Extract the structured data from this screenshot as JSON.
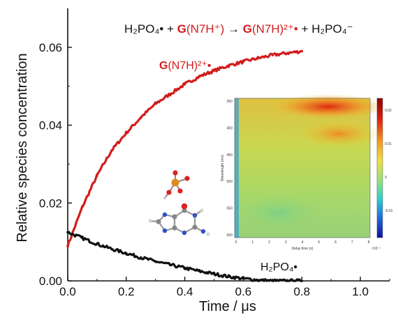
{
  "chart_data": {
    "type": "line",
    "xlabel": "Time / μs",
    "ylabel": "Relative species concentration",
    "xlim": [
      0.0,
      1.1
    ],
    "ylim": [
      0.0,
      0.07
    ],
    "xticks": [
      "0.0",
      "0.2",
      "0.4",
      "0.6",
      "0.8",
      "1.0"
    ],
    "yticks": [
      "0.00",
      "0.02",
      "0.04",
      "0.06"
    ],
    "grid": false,
    "annotation": {
      "reactant1": "H₂PO₄•",
      "plus1": " + ",
      "reactant2_bold": "G",
      "reactant2_rest": "(N7H⁺)",
      "arrow": " → ",
      "product1_bold": "G",
      "product1_rest": "(N7H)²⁺•",
      "plus2": " + ",
      "product2": "H₂PO₄⁻"
    },
    "series": [
      {
        "label_bold": "G",
        "label_rest": "(N7H)²⁺•",
        "color": "#d21d1d",
        "x": [
          0.0,
          0.05,
          0.1,
          0.15,
          0.2,
          0.25,
          0.3,
          0.35,
          0.4,
          0.45,
          0.5,
          0.55,
          0.6,
          0.65,
          0.7,
          0.75,
          0.8
        ],
        "y": [
          0.009,
          0.019,
          0.027,
          0.0335,
          0.038,
          0.042,
          0.0455,
          0.048,
          0.0505,
          0.0525,
          0.054,
          0.0553,
          0.0563,
          0.0572,
          0.058,
          0.0585,
          0.059
        ]
      },
      {
        "label": "H₂PO₄•",
        "color": "#111111",
        "x": [
          0.0,
          0.05,
          0.1,
          0.15,
          0.2,
          0.25,
          0.3,
          0.35,
          0.4,
          0.45,
          0.5,
          0.55,
          0.6,
          0.65,
          0.7,
          0.75,
          0.8
        ],
        "y": [
          0.0125,
          0.011,
          0.0095,
          0.0082,
          0.0071,
          0.006,
          0.005,
          0.0041,
          0.0033,
          0.0025,
          0.0018,
          0.0011,
          0.0006,
          0.0002,
          0.0,
          0.0,
          0.0
        ]
      }
    ],
    "inset": {
      "type": "heatmap",
      "xlabel": "Delay time (s)",
      "ylabel": "Wavelength (nm)",
      "xticks": [
        "0",
        "1",
        "2",
        "3",
        "4",
        "5",
        "6",
        "7",
        "8"
      ],
      "x_multiplier": "×10⁻⁷",
      "yticks": [
        "350",
        "400",
        "450",
        "500",
        "550",
        "600"
      ],
      "colorbar_ticks": [
        "0.02",
        "0.01",
        "0",
        "-0.01"
      ]
    }
  }
}
